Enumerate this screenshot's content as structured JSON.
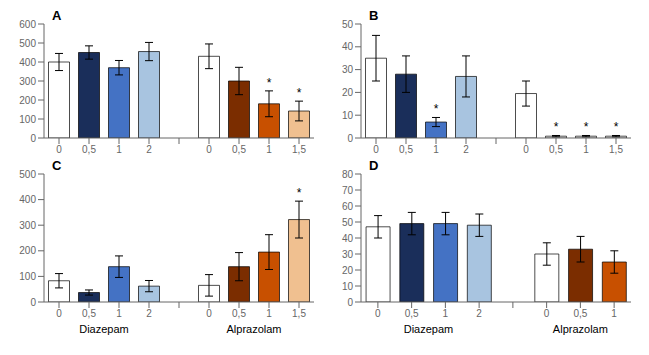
{
  "chart_data": [
    {
      "type": "bar",
      "title": "A",
      "categories": [
        "0",
        "0,5",
        "1",
        "2",
        "0",
        "0,5",
        "1",
        "1,5"
      ],
      "values": [
        400,
        450,
        370,
        455,
        430,
        300,
        180,
        142
      ],
      "errors": [
        45,
        35,
        38,
        48,
        65,
        72,
        68,
        52
      ],
      "colors": [
        "#ffffff",
        "#1a2e5a",
        "#4472c4",
        "#a8c4e0",
        "#ffffff",
        "#7b2d00",
        "#c85000",
        "#f0c090"
      ],
      "sig_labels": [
        null,
        null,
        null,
        null,
        null,
        null,
        "*",
        "*"
      ],
      "ylim": [
        0,
        600
      ],
      "yticks": [
        0,
        100,
        200,
        300,
        400,
        500,
        600
      ],
      "grid": false
    },
    {
      "type": "bar",
      "title": "B",
      "categories": [
        "0",
        "0,5",
        "1",
        "2",
        "0",
        "0,5",
        "1",
        "1,5"
      ],
      "values": [
        35,
        28,
        7,
        27,
        19.5,
        0.8,
        0.8,
        0.8
      ],
      "errors": [
        10,
        8,
        2,
        9,
        5.5,
        0.3,
        0.3,
        0.3
      ],
      "colors": [
        "#ffffff",
        "#1a2e5a",
        "#4472c4",
        "#a8c4e0",
        "#ffffff",
        "#ffffff",
        "#ffffff",
        "#ffffff"
      ],
      "sig_labels": [
        null,
        null,
        "*",
        null,
        null,
        "*",
        "*",
        "*"
      ],
      "ylim": [
        0,
        50
      ],
      "yticks": [
        0,
        10,
        20,
        30,
        40,
        50
      ],
      "grid": false
    },
    {
      "type": "bar",
      "title": "C",
      "categories": [
        "0",
        "0,5",
        "1",
        "2",
        "0",
        "0,5",
        "1",
        "1,5"
      ],
      "groups": [
        "Diazepam",
        "Diazepam",
        "Diazepam",
        "Diazepam",
        "Alprazolam",
        "Alprazolam",
        "Alprazolam",
        "Alprazolam"
      ],
      "values": [
        83,
        37,
        138,
        62,
        65,
        138,
        195,
        322
      ],
      "errors": [
        28,
        10,
        42,
        22,
        42,
        55,
        68,
        72
      ],
      "colors": [
        "#ffffff",
        "#1a2e5a",
        "#4472c4",
        "#a8c4e0",
        "#ffffff",
        "#7b2d00",
        "#c85000",
        "#f0c090"
      ],
      "sig_labels": [
        null,
        null,
        null,
        null,
        null,
        null,
        null,
        "*"
      ],
      "ylim": [
        0,
        500
      ],
      "yticks": [
        0,
        100,
        200,
        300,
        400,
        500
      ],
      "grid": false
    },
    {
      "type": "bar",
      "title": "D",
      "categories": [
        "0",
        "0,5",
        "1",
        "2",
        "0",
        "0,5",
        "1"
      ],
      "groups": [
        "Diazepam",
        "Diazepam",
        "Diazepam",
        "Diazepam",
        "Alprazolam",
        "Alprazolam",
        "Alprazolam"
      ],
      "values": [
        47,
        49,
        49,
        48,
        30,
        33,
        25
      ],
      "errors": [
        7,
        7,
        7,
        7,
        7,
        8,
        7
      ],
      "colors": [
        "#ffffff",
        "#1a2e5a",
        "#4472c4",
        "#a8c4e0",
        "#ffffff",
        "#7b2d00",
        "#c85000"
      ],
      "ylim": [
        0,
        80
      ],
      "yticks": [
        0,
        10,
        20,
        30,
        40,
        50,
        60,
        70,
        80
      ],
      "grid": false
    }
  ]
}
